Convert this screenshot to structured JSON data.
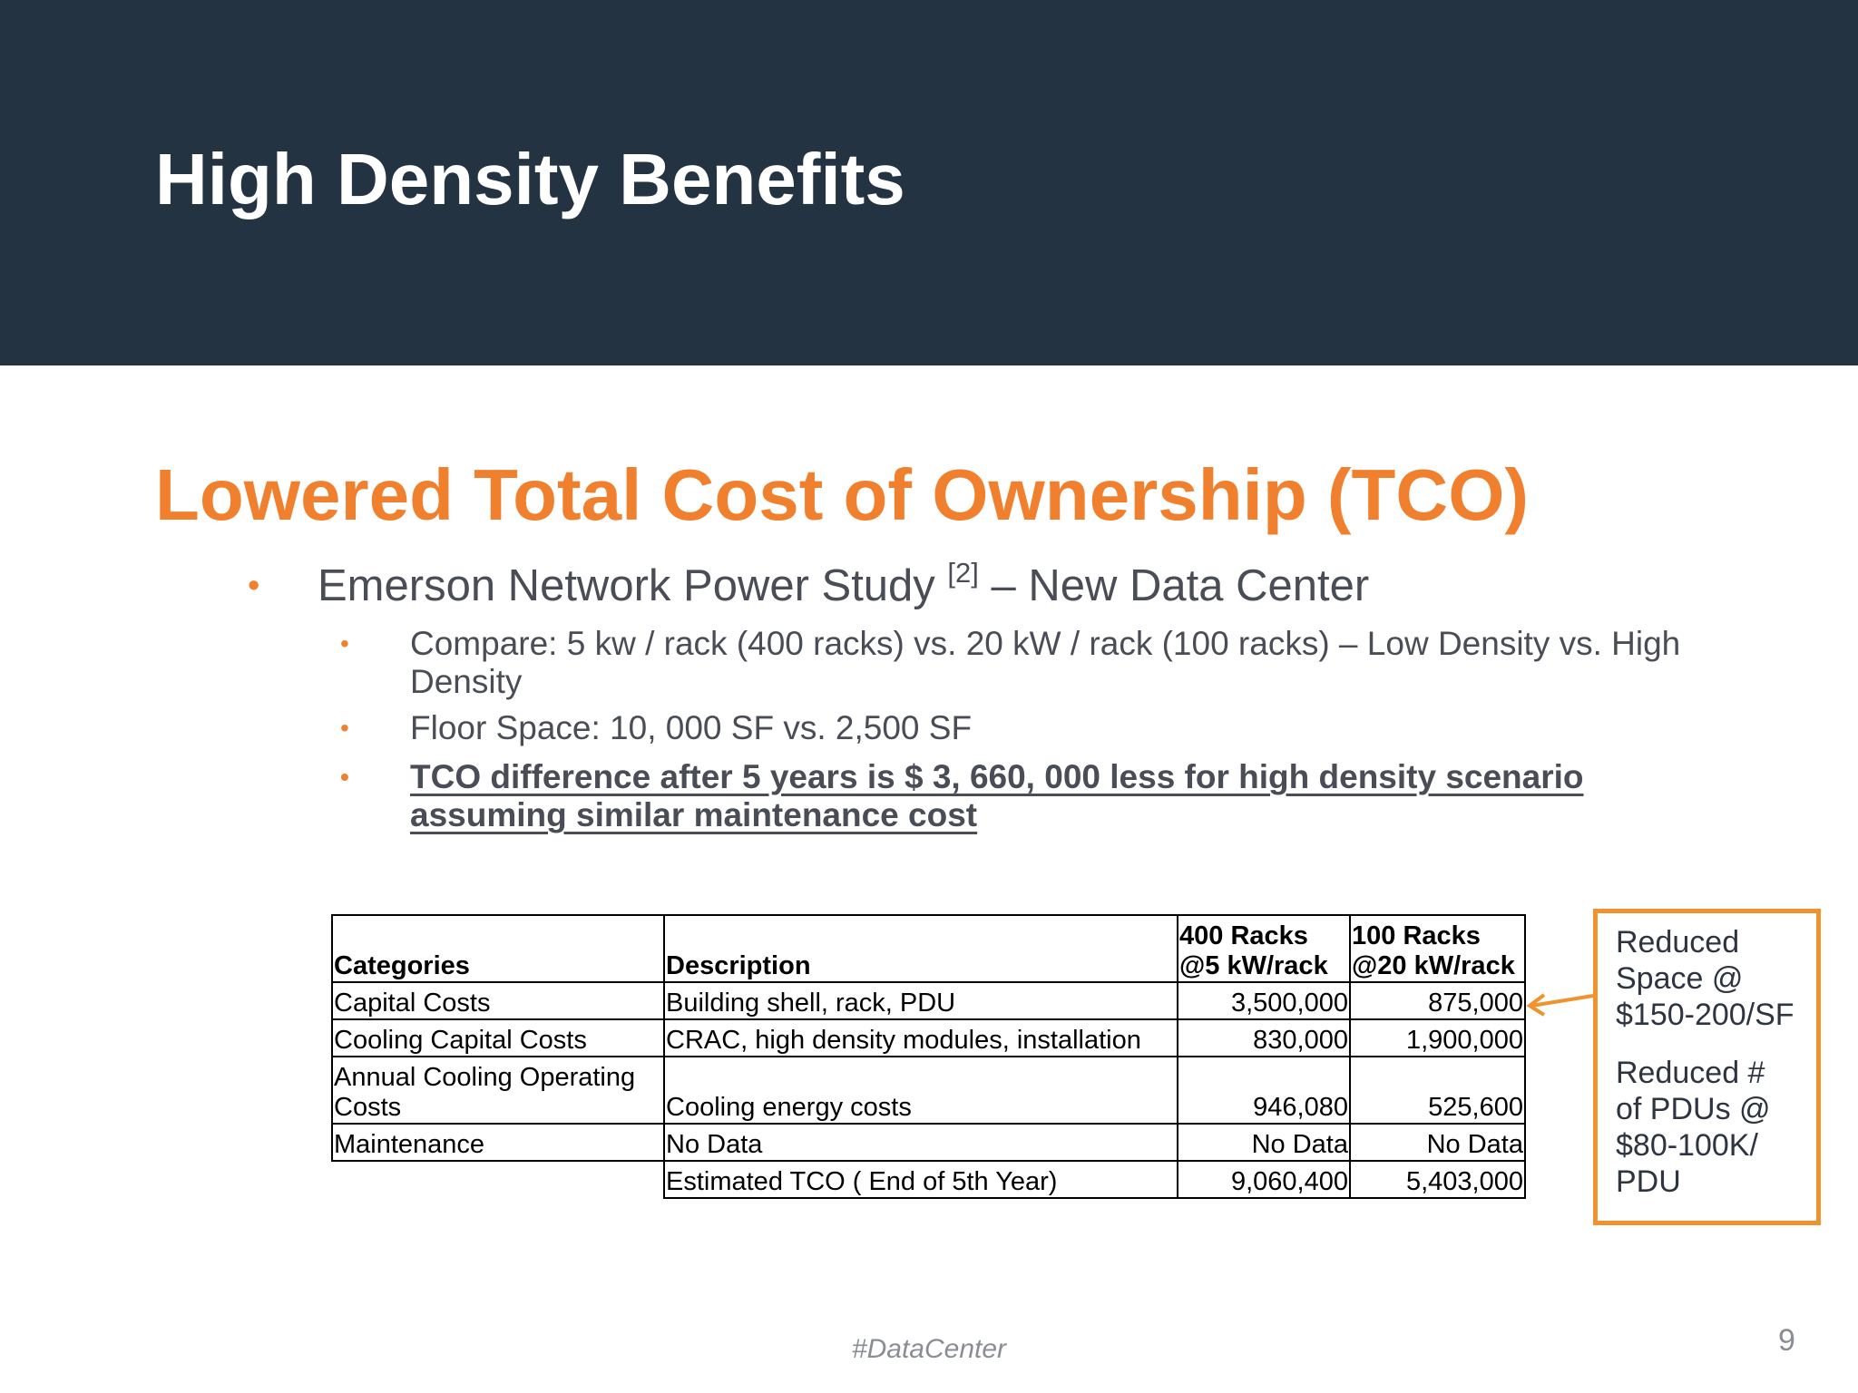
{
  "slide": {
    "title": "High Density Benefits",
    "section_title": "Lowered Total Cost of Ownership (TCO)",
    "accent_color": "#f0802e",
    "header_color": "#233342"
  },
  "bullets": {
    "main": {
      "text_before": "Emerson Network Power Study ",
      "ref": "[2]",
      "text_after": " – New Data Center",
      "dot": "•"
    },
    "sub": [
      {
        "text": "Compare: 5 kw / rack (400 racks) vs. 20 kW / rack (100 racks) – Low Density vs. High Density",
        "dot": "•"
      },
      {
        "text": "Floor Space: 10, 000 SF vs. 2,500 SF",
        "dot": "•"
      },
      {
        "text": "TCO difference after 5 years is $ 3, 660, 000 less for high density scenario assuming similar maintenance cost",
        "dot": "•"
      }
    ]
  },
  "table": {
    "headers": {
      "categories": "Categories",
      "description": "Description",
      "col400_line1": "400 Racks",
      "col400_line2": "@5 kW/rack",
      "col100_line1": "100 Racks",
      "col100_line2": "@20 kW/rack"
    },
    "rows": [
      {
        "category": "Capital Costs",
        "description": "Building shell, rack, PDU",
        "low_density": "3,500,000",
        "high_density": "875,000"
      },
      {
        "category": "Cooling Capital Costs",
        "description": "CRAC, high density modules, installation",
        "low_density": "830,000",
        "high_density": "1,900,000"
      },
      {
        "category_line1": "Annual Cooling Operating",
        "category_line2": "Costs",
        "description": "Cooling energy costs",
        "low_density": "946,080",
        "high_density": "525,600"
      },
      {
        "category": "Maintenance",
        "description": "No Data",
        "low_density": "No Data",
        "high_density": "No Data"
      }
    ],
    "total": {
      "description": "Estimated TCO ( End of 5th Year)",
      "low_density": "9,060,400",
      "high_density": "5,403,000"
    }
  },
  "callout": {
    "para1": "Reduced Space @ $150-200/SF",
    "para2": "Reduced # of PDUs @ $80-100K/ PDU",
    "border_color": "#f0922e"
  },
  "footer": {
    "hashtag": "#DataCenter",
    "page_number": "9"
  }
}
